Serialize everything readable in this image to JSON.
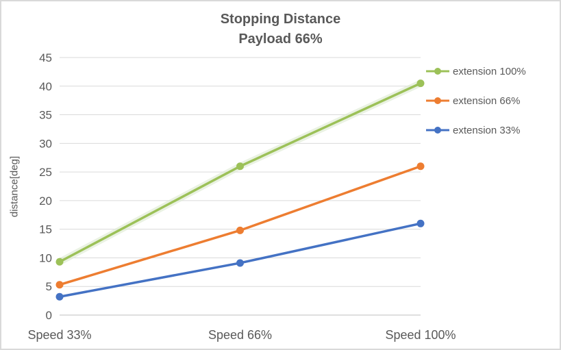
{
  "chart_data": {
    "type": "line",
    "title_lines": [
      "Stopping Distance",
      "Payload 66%"
    ],
    "ylabel": "distance[deg]",
    "categories": [
      "Speed 33%",
      "Speed 66%",
      "Speed 100%"
    ],
    "series": [
      {
        "name": "extension 100%",
        "values": [
          9.3,
          26,
          40.5
        ],
        "color": "#9CC158",
        "halo": true
      },
      {
        "name": "extension 66%",
        "values": [
          5.3,
          14.8,
          26
        ],
        "color": "#ED7D31",
        "halo": false
      },
      {
        "name": "extension 33%",
        "values": [
          3.2,
          9.1,
          16
        ],
        "color": "#4472C4",
        "halo": false
      }
    ],
    "ylim": [
      0,
      45
    ],
    "ytick_step": 5,
    "yticks": [
      0,
      5,
      10,
      15,
      20,
      25,
      30,
      35,
      40,
      45
    ],
    "grid": "horizontal",
    "legend_position": "right",
    "colors": {
      "text": "#595959",
      "grid": "#D9D9D9",
      "axis": "#BFBFBF",
      "border": "#D9D9D9",
      "halo": "#DCEAD0"
    }
  }
}
